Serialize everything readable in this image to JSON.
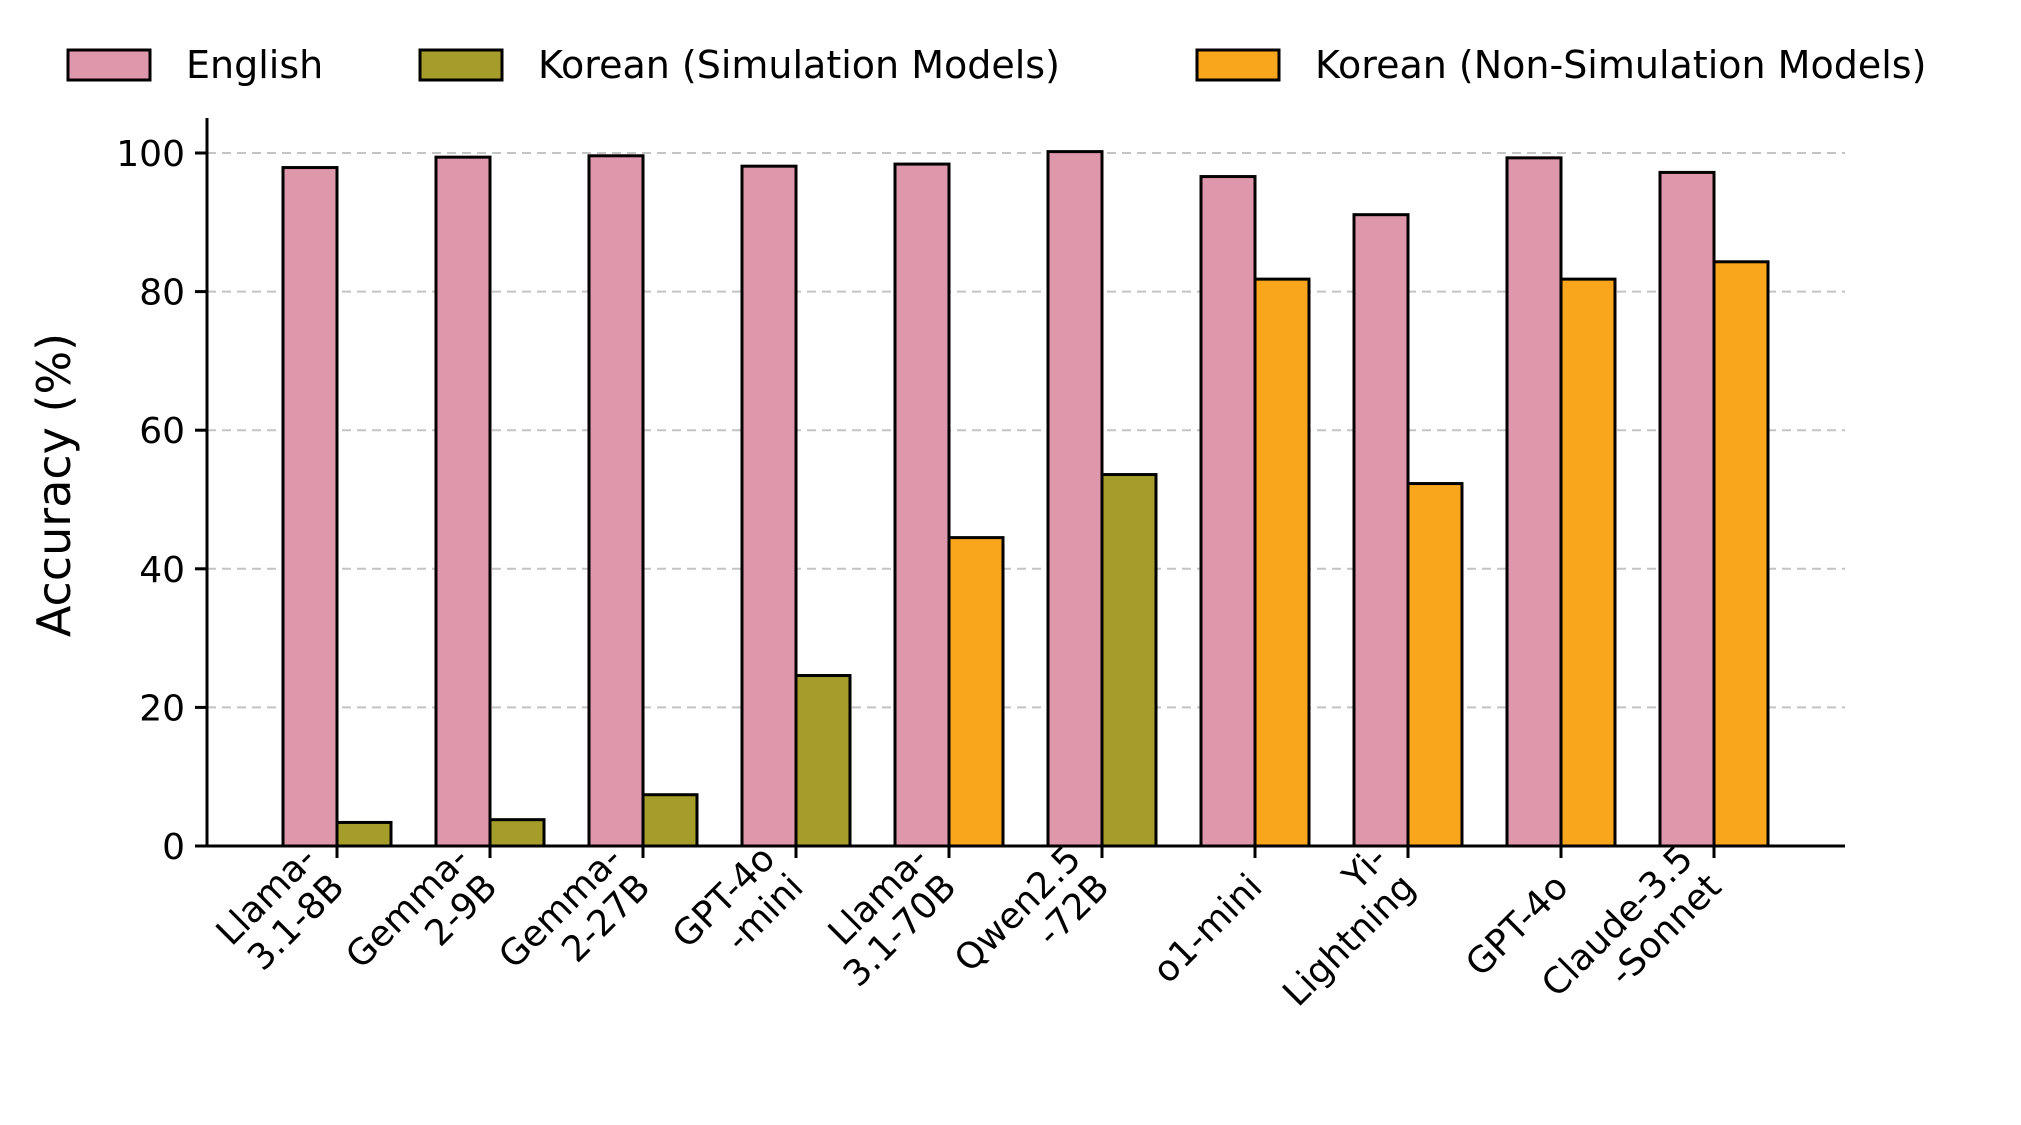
{
  "colors": {
    "english": "#df97ab",
    "korean_sim": "#a59d2a",
    "korean_nonsim": "#f9a61d",
    "grid": "#c4c4c4",
    "edge": "#000000"
  },
  "legend": [
    {
      "key": "english",
      "label": "English"
    },
    {
      "key": "korean_sim",
      "label": "Korean (Simulation Models)"
    },
    {
      "key": "korean_nonsim",
      "label": "Korean (Non-Simulation Models)"
    }
  ],
  "chart_data": {
    "type": "bar",
    "ylabel": "Accuracy (%)",
    "xlabel": "",
    "ylim": [
      0,
      105
    ],
    "yticks": [
      0,
      20,
      40,
      60,
      80,
      100
    ],
    "grid": "horizontal dashed",
    "legend_placement": "top",
    "categories": [
      [
        "Llama-",
        "3.1-8B"
      ],
      [
        "Gemma-",
        "2-9B"
      ],
      [
        "Gemma-",
        "2-27B"
      ],
      [
        "GPT-4o",
        "-mini"
      ],
      [
        "Llama-",
        "3.1-70B"
      ],
      [
        "Qwen2.5",
        "-72B"
      ],
      [
        "o1-mini"
      ],
      [
        "Yi-",
        "Lightning"
      ],
      [
        "GPT-4o"
      ],
      [
        "Claude-3.5",
        "-Sonnet"
      ]
    ],
    "series": [
      {
        "name": "English",
        "values": [
          97.9,
          99.4,
          99.6,
          98.1,
          98.4,
          100.2,
          96.6,
          91.1,
          99.3,
          97.2
        ]
      },
      {
        "name": "Korean",
        "values": [
          3.4,
          3.8,
          7.4,
          24.6,
          44.5,
          53.6,
          81.8,
          52.3,
          81.8,
          84.3
        ],
        "model_type": [
          "simulation",
          "simulation",
          "simulation",
          "simulation",
          "non-simulation",
          "simulation",
          "non-simulation",
          "non-simulation",
          "non-simulation",
          "non-simulation"
        ]
      }
    ]
  }
}
